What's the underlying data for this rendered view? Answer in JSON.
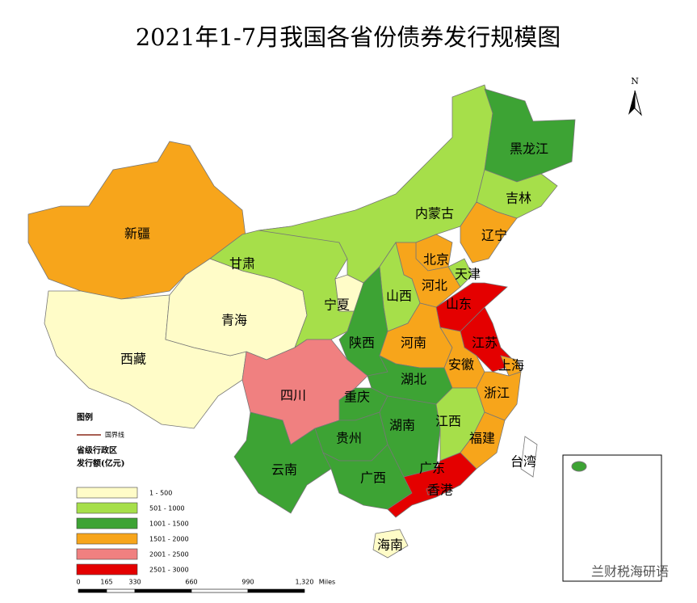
{
  "title": "2021年1-7月我国各省份债券发行规模图",
  "north": "N",
  "legend": {
    "heading": "图例",
    "border": "国界线",
    "admin": "省级行政区",
    "unit": "发行额(亿元)",
    "classes": [
      {
        "label": "1 - 500",
        "color": "#fffcc8"
      },
      {
        "label": "501 - 1000",
        "color": "#a6df4a"
      },
      {
        "label": "1001 - 1500",
        "color": "#3da334"
      },
      {
        "label": "1501 - 2000",
        "color": "#f7a51b"
      },
      {
        "label": "2001 - 2500",
        "color": "#f08080"
      },
      {
        "label": "2501 - 3000",
        "color": "#e40000"
      }
    ]
  },
  "scale": [
    "0",
    "165",
    "330",
    "660",
    "990",
    "1,320",
    "Miles"
  ],
  "provinces": [
    {
      "name": "新疆",
      "class": 3
    },
    {
      "name": "西藏",
      "class": 0
    },
    {
      "name": "青海",
      "class": 0
    },
    {
      "name": "甘肃",
      "class": 1
    },
    {
      "name": "内蒙古",
      "class": 1
    },
    {
      "name": "宁夏",
      "class": 0
    },
    {
      "name": "黑龙江",
      "class": 2
    },
    {
      "name": "吉林",
      "class": 1
    },
    {
      "name": "辽宁",
      "class": 3
    },
    {
      "name": "北京",
      "class": 3
    },
    {
      "name": "天津",
      "class": 1
    },
    {
      "name": "河北",
      "class": 3
    },
    {
      "name": "山西",
      "class": 1
    },
    {
      "name": "陕西",
      "class": 2
    },
    {
      "name": "山东",
      "class": 5
    },
    {
      "name": "河南",
      "class": 3
    },
    {
      "name": "江苏",
      "class": 5
    },
    {
      "name": "安徽",
      "class": 3
    },
    {
      "name": "上海",
      "class": 3
    },
    {
      "name": "浙江",
      "class": 3
    },
    {
      "name": "湖北",
      "class": 2
    },
    {
      "name": "四川",
      "class": 4
    },
    {
      "name": "重庆",
      "class": 2
    },
    {
      "name": "贵州",
      "class": 2
    },
    {
      "name": "湖南",
      "class": 2
    },
    {
      "name": "江西",
      "class": 1
    },
    {
      "name": "福建",
      "class": 3
    },
    {
      "name": "云南",
      "class": 2
    },
    {
      "name": "广西",
      "class": 2
    },
    {
      "name": "广东",
      "class": 5
    },
    {
      "name": "海南",
      "class": 0
    },
    {
      "name": "台湾",
      "class": null
    },
    {
      "name": "香港",
      "class": 5
    }
  ],
  "watermark": "兰财税海研语"
}
